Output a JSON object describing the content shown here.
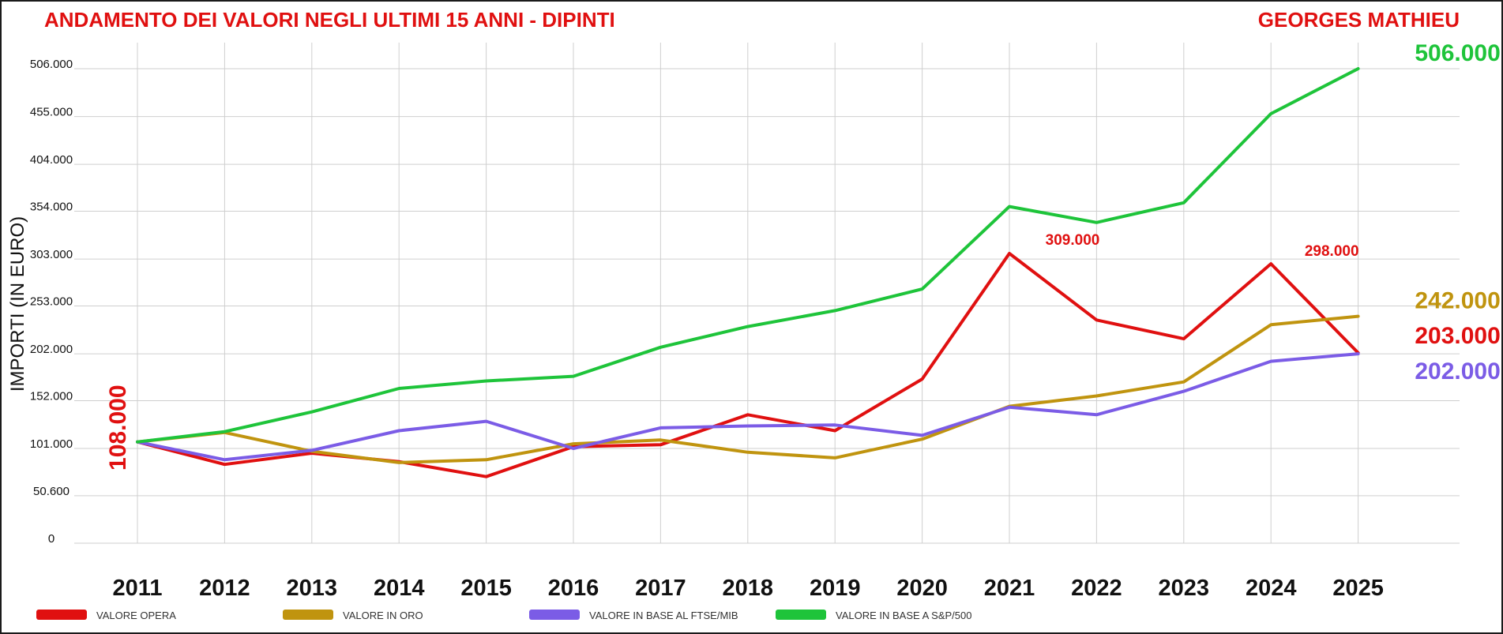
{
  "chart_data": {
    "type": "line",
    "title": "ANDAMENTO DEI VALORI NEGLI ULTIMI 15 ANNI - DIPINTI",
    "artist": "GEORGES MATHIEU",
    "ylabel": "IMPORTI (IN EURO)",
    "xlabel": "",
    "ylim": [
      0,
      506000
    ],
    "grid": true,
    "legend_position": "bottom",
    "y_ticks": [
      {
        "value": 0,
        "label": "0"
      },
      {
        "value": 50600,
        "label": "50.600"
      },
      {
        "value": 101000,
        "label": "101.000"
      },
      {
        "value": 152000,
        "label": "152.000"
      },
      {
        "value": 202000,
        "label": "202.000"
      },
      {
        "value": 253000,
        "label": "253.000"
      },
      {
        "value": 303000,
        "label": "303.000"
      },
      {
        "value": 354000,
        "label": "354.000"
      },
      {
        "value": 404000,
        "label": "404.000"
      },
      {
        "value": 455000,
        "label": "455.000"
      },
      {
        "value": 506000,
        "label": "506.000"
      }
    ],
    "categories": [
      "2011",
      "2012",
      "2013",
      "2014",
      "2015",
      "2016",
      "2017",
      "2018",
      "2019",
      "2020",
      "2021",
      "2022",
      "2023",
      "2024",
      "2025"
    ],
    "series": [
      {
        "name": "VALORE OPERA",
        "color": "#e01010",
        "values": [
          108000,
          84000,
          96000,
          87000,
          71000,
          103000,
          105000,
          137000,
          120000,
          175000,
          309000,
          238000,
          218000,
          298000,
          203000
        ]
      },
      {
        "name": "VALORE IN ORO",
        "color": "#c0940f",
        "values": [
          108000,
          118000,
          98000,
          86000,
          89000,
          106000,
          110000,
          97000,
          91000,
          111000,
          146000,
          157000,
          172000,
          233000,
          242000
        ]
      },
      {
        "name": "VALORE IN BASE AL FTSE/MIB",
        "color": "#7b5ce6",
        "values": [
          108000,
          89000,
          99000,
          120000,
          130000,
          101000,
          123000,
          125000,
          126000,
          115000,
          145000,
          137000,
          162000,
          194000,
          202000
        ]
      },
      {
        "name": "VALORE IN BASE A S&P/500",
        "color": "#1ec43a",
        "values": [
          108000,
          119000,
          140000,
          165000,
          173000,
          178000,
          209000,
          231000,
          248000,
          271000,
          359000,
          342000,
          363000,
          458000,
          506000
        ]
      }
    ],
    "annotations": [
      {
        "label": "108.000",
        "series": 0,
        "index": 0,
        "color": "#e01010"
      },
      {
        "label": "309.000",
        "series": 0,
        "index": 10,
        "color": "#e01010"
      },
      {
        "label": "298.000",
        "series": 0,
        "index": 13,
        "color": "#e01010"
      },
      {
        "label": "506.000",
        "series": 3,
        "index": 14,
        "color": "#1ec43a"
      },
      {
        "label": "242.000",
        "series": 1,
        "index": 14,
        "color": "#c0940f"
      },
      {
        "label": "203.000",
        "series": 0,
        "index": 14,
        "color": "#e01010"
      },
      {
        "label": "202.000",
        "series": 2,
        "index": 14,
        "color": "#7b5ce6"
      }
    ]
  }
}
